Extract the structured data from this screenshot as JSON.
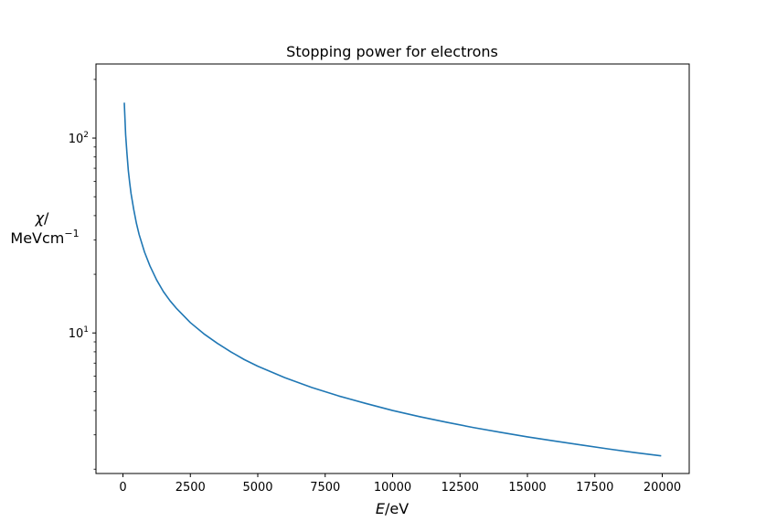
{
  "chart_data": {
    "type": "line",
    "title": "Stopping power for electrons",
    "xlabel": {
      "var": "E",
      "unit": "/eV"
    },
    "ylabel": {
      "var": "χ",
      "slash": "/",
      "unit": "MeVcm",
      "exp": "−1"
    },
    "xlim": [
      -1000,
      21000
    ],
    "ylim": [
      1.9,
      240
    ],
    "yscale": "log",
    "grid": false,
    "x_ticks": [
      {
        "value": 0,
        "label": "0"
      },
      {
        "value": 2500,
        "label": "2500"
      },
      {
        "value": 5000,
        "label": "5000"
      },
      {
        "value": 7500,
        "label": "7500"
      },
      {
        "value": 10000,
        "label": "10000"
      },
      {
        "value": 12500,
        "label": "12500"
      },
      {
        "value": 15000,
        "label": "15000"
      },
      {
        "value": 17500,
        "label": "17500"
      },
      {
        "value": 20000,
        "label": "20000"
      }
    ],
    "y_ticks": [
      {
        "value": 10,
        "base": "10",
        "exp": "1"
      },
      {
        "value": 100,
        "base": "10",
        "exp": "2"
      }
    ],
    "y_minor_ticks": [
      2,
      3,
      4,
      5,
      6,
      7,
      8,
      9,
      20,
      30,
      40,
      50,
      60,
      70,
      80,
      90,
      200
    ],
    "series": [
      {
        "color": "#1f77b4",
        "x": [
          50,
          100,
          150,
          200,
          250,
          300,
          400,
          500,
          600,
          800,
          1000,
          1250,
          1500,
          1750,
          2000,
          2500,
          3000,
          3500,
          4000,
          4500,
          5000,
          6000,
          7000,
          8000,
          9000,
          10000,
          11000,
          12000,
          13000,
          14000,
          15000,
          16000,
          17000,
          18000,
          19000,
          19960
        ],
        "y": [
          152,
          104,
          83,
          68,
          59,
          52,
          43,
          36.5,
          32,
          26,
          22.1,
          18.7,
          16.3,
          14.6,
          13.3,
          11.3,
          9.9,
          8.85,
          8.0,
          7.3,
          6.75,
          5.9,
          5.25,
          4.75,
          4.35,
          4.0,
          3.72,
          3.48,
          3.27,
          3.09,
          2.93,
          2.79,
          2.66,
          2.54,
          2.43,
          2.34
        ]
      }
    ]
  }
}
